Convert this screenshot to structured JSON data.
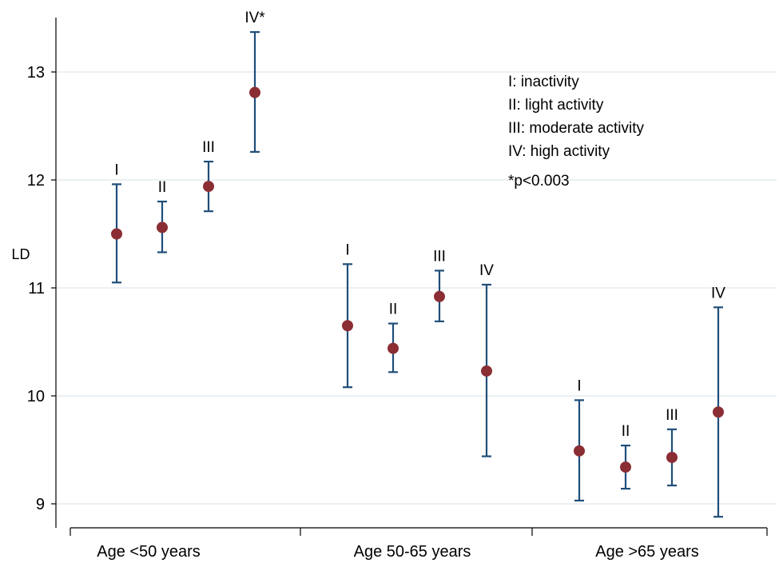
{
  "chart_data": {
    "type": "scatter",
    "ylabel": "LD",
    "ylim": [
      8.75,
      13.5
    ],
    "yticks": [
      9,
      10,
      11,
      12,
      13
    ],
    "grid": true,
    "groups": [
      "Age <50 years",
      "Age 50-65 years",
      "Age >65 years"
    ],
    "series": [
      {
        "label": "I",
        "group": 0,
        "mean": 11.5,
        "lower": 11.05,
        "upper": 11.96
      },
      {
        "label": "II",
        "group": 0,
        "mean": 11.56,
        "lower": 11.33,
        "upper": 11.8
      },
      {
        "label": "III",
        "group": 0,
        "mean": 11.94,
        "lower": 11.71,
        "upper": 12.17
      },
      {
        "label": "IV*",
        "group": 0,
        "mean": 12.81,
        "lower": 12.26,
        "upper": 13.37
      },
      {
        "label": "I",
        "group": 1,
        "mean": 10.65,
        "lower": 10.08,
        "upper": 11.22
      },
      {
        "label": "II",
        "group": 1,
        "mean": 10.44,
        "lower": 10.22,
        "upper": 10.67
      },
      {
        "label": "III",
        "group": 1,
        "mean": 10.92,
        "lower": 10.69,
        "upper": 11.16
      },
      {
        "label": "IV",
        "group": 1,
        "mean": 10.23,
        "lower": 9.44,
        "upper": 11.03
      },
      {
        "label": "I",
        "group": 2,
        "mean": 9.49,
        "lower": 9.03,
        "upper": 9.96
      },
      {
        "label": "II",
        "group": 2,
        "mean": 9.34,
        "lower": 9.14,
        "upper": 9.54
      },
      {
        "label": "III",
        "group": 2,
        "mean": 9.43,
        "lower": 9.17,
        "upper": 9.69
      },
      {
        "label": "IV",
        "group": 2,
        "mean": 9.85,
        "lower": 8.88,
        "upper": 10.82
      }
    ],
    "legend": [
      "I: inactivity",
      "II: light activity",
      "III: moderate activity",
      "IV: high activity",
      "*p<0.003"
    ],
    "legend_position": "top-right",
    "colors": {
      "marker": "#8B2E34",
      "errorbar": "#1F4E79",
      "grid": "#E3ECEF",
      "axis": "#000000"
    }
  }
}
